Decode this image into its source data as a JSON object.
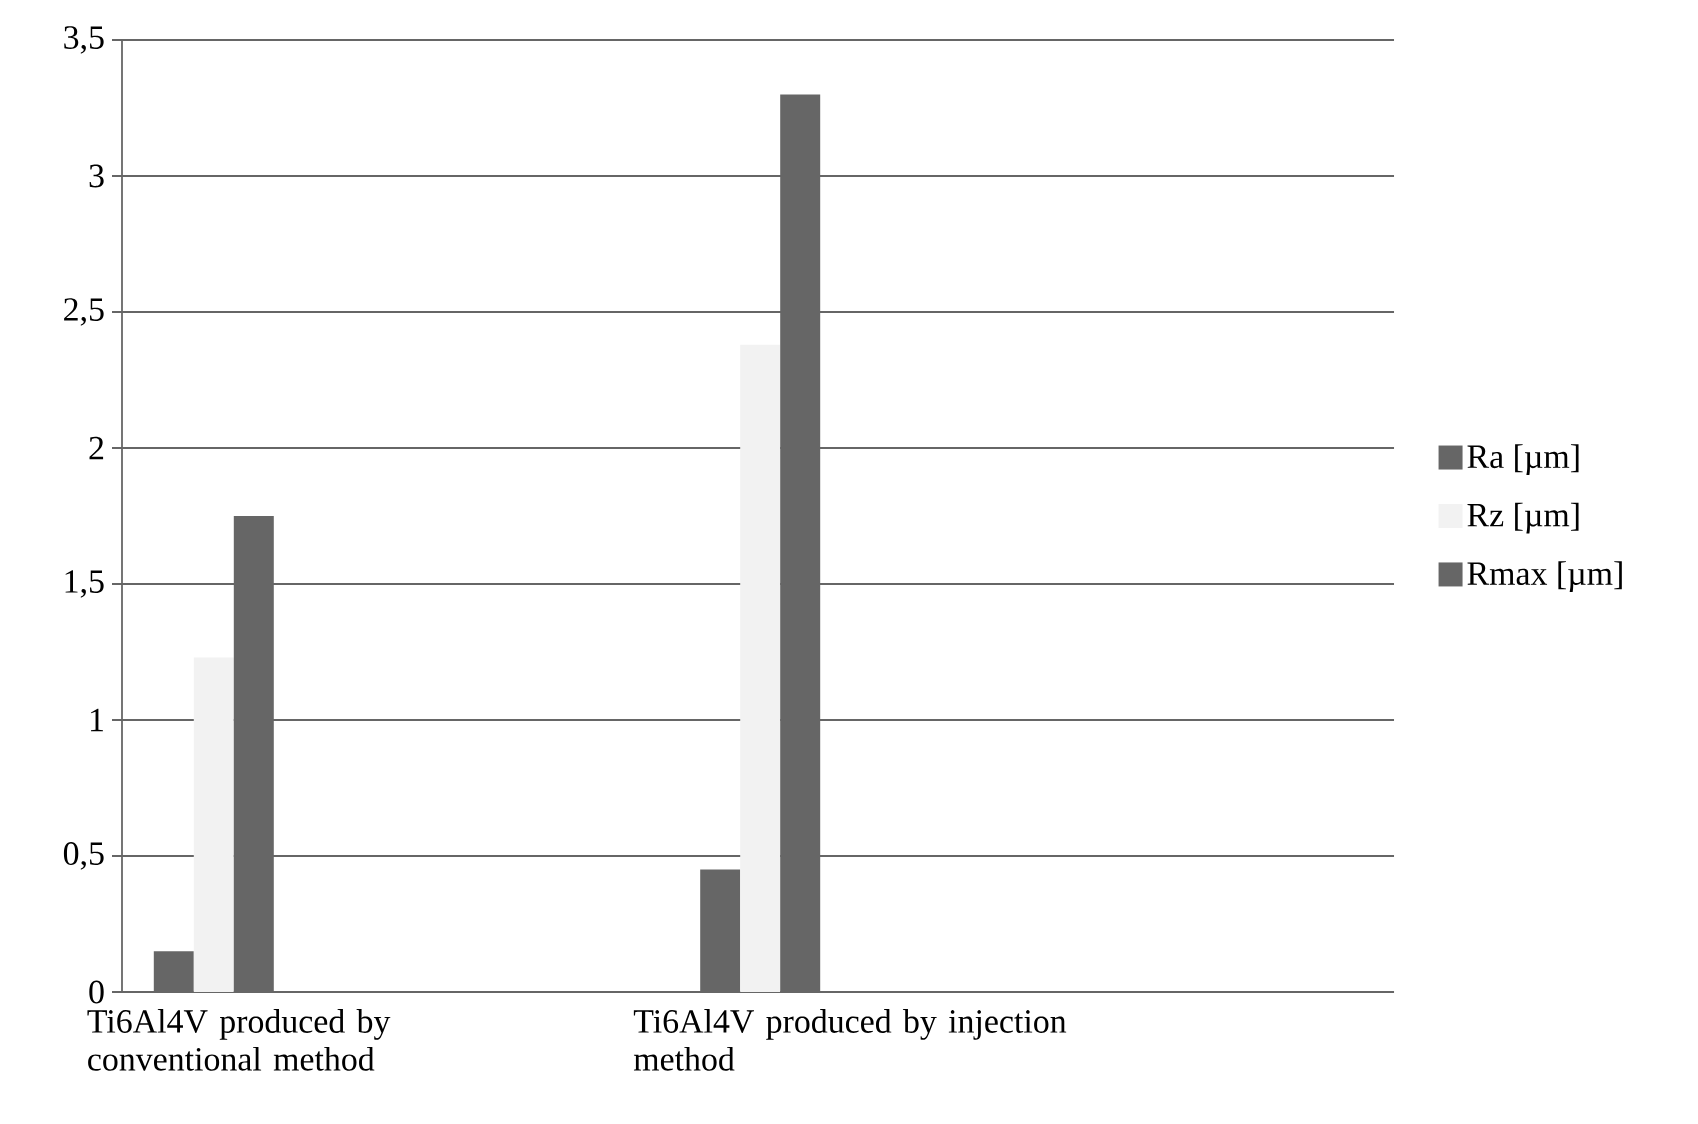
{
  "chart_data": {
    "type": "bar",
    "categories": [
      "Ti6Al4V produced by conventional method",
      "Ti6Al4V produced by injection method"
    ],
    "series": [
      {
        "name": "Ra [µm]",
        "color": "#666666",
        "values": [
          0.15,
          0.45
        ]
      },
      {
        "name": "Rz [µm]",
        "color": "#f2f2f2",
        "values": [
          1.23,
          2.38
        ]
      },
      {
        "name": "Rmax [µm]",
        "color": "#666666",
        "values": [
          1.75,
          3.3
        ]
      }
    ],
    "ylim": [
      0,
      3.5
    ],
    "yticks": [
      0,
      {
        "value": 0.5,
        "label": "0,5"
      },
      1,
      {
        "value": 1.5,
        "label": "1,5"
      },
      2,
      {
        "value": 2.5,
        "label": "2,5"
      },
      3,
      {
        "value": 3.5,
        "label": "3,5"
      }
    ],
    "grid": "y",
    "legend": "right"
  }
}
